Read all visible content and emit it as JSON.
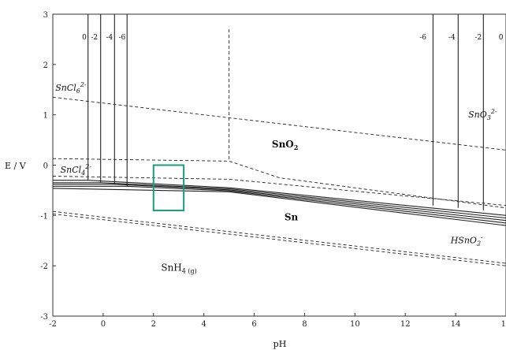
{
  "chart_data": {
    "type": "line",
    "title": "",
    "xlabel": "pH",
    "ylabel": "E / V",
    "xlim": [
      -2,
      16
    ],
    "ylim": [
      -3,
      3
    ],
    "x_ticks": [
      "-2",
      "0",
      "2",
      "4",
      "6",
      "8",
      "10",
      "12",
      "14",
      "16"
    ],
    "y_ticks": [
      "3",
      "2",
      "1",
      "0",
      "-1",
      "-2",
      "-3"
    ],
    "grid": false,
    "regions": [
      {
        "label": "SnO",
        "sub": "2",
        "sup": "",
        "x": 6.7,
        "y": 0.35,
        "style": "bold"
      },
      {
        "label": "Sn",
        "sub": "",
        "sup": "",
        "x": 7.2,
        "y": -1.1,
        "style": "bold"
      },
      {
        "label": "SnH",
        "sub": "4 (g)",
        "sup": "",
        "x": 2.3,
        "y": -2.1,
        "style": "normal"
      },
      {
        "label": "SnCl",
        "sub": "6",
        "sup": "2-",
        "x": -1.9,
        "y": 1.48,
        "style": "italic"
      },
      {
        "label": "SnCl",
        "sub": "4",
        "sup": "2-",
        "x": -1.7,
        "y": -0.15,
        "style": "italic"
      },
      {
        "label": "SnO",
        "sub": "3",
        "sup": "2-",
        "x": 14.5,
        "y": 0.95,
        "style": "italic"
      },
      {
        "label": "HSnO",
        "sub": "2",
        "sup": "-",
        "x": 13.8,
        "y": -1.55,
        "style": "italic"
      }
    ],
    "activity_labels_left": [
      {
        "text": "0",
        "x": -0.75
      },
      {
        "text": "-2",
        "x": -0.35
      },
      {
        "text": "-4",
        "x": 0.25
      },
      {
        "text": "-6",
        "x": 0.75
      }
    ],
    "activity_labels_right": [
      {
        "text": "-6",
        "x": 12.7
      },
      {
        "text": "-4",
        "x": 13.85
      },
      {
        "text": "-2",
        "x": 14.9
      },
      {
        "text": "0",
        "x": 15.8
      }
    ],
    "series": [
      {
        "style": "solid",
        "points": [
          [
            -0.6,
            3
          ],
          [
            -0.6,
            -0.3
          ]
        ]
      },
      {
        "style": "solid",
        "points": [
          [
            -0.1,
            3
          ],
          [
            -0.1,
            -0.35
          ]
        ]
      },
      {
        "style": "solid",
        "points": [
          [
            0.45,
            3
          ],
          [
            0.45,
            -0.38
          ]
        ]
      },
      {
        "style": "solid",
        "points": [
          [
            0.95,
            3
          ],
          [
            0.95,
            -0.42
          ]
        ]
      },
      {
        "style": "solid",
        "points": [
          [
            13.1,
            3
          ],
          [
            13.1,
            -0.8
          ]
        ]
      },
      {
        "style": "solid",
        "points": [
          [
            14.1,
            3
          ],
          [
            14.1,
            -0.85
          ]
        ]
      },
      {
        "style": "solid",
        "points": [
          [
            15.1,
            3
          ],
          [
            15.1,
            -0.9
          ]
        ]
      },
      {
        "style": "solid",
        "points": [
          [
            -2,
            -0.3
          ],
          [
            -0.6,
            -0.3
          ],
          [
            5,
            -0.45
          ],
          [
            16,
            -1.0
          ]
        ]
      },
      {
        "style": "solid",
        "points": [
          [
            -2,
            -0.35
          ],
          [
            -0.1,
            -0.35
          ],
          [
            5,
            -0.47
          ],
          [
            16,
            -1.05
          ]
        ]
      },
      {
        "style": "solid",
        "points": [
          [
            -2,
            -0.38
          ],
          [
            0.45,
            -0.38
          ],
          [
            5,
            -0.49
          ],
          [
            16,
            -1.1
          ]
        ]
      },
      {
        "style": "solid",
        "points": [
          [
            -2,
            -0.42
          ],
          [
            0.95,
            -0.42
          ],
          [
            5,
            -0.51
          ],
          [
            16,
            -1.15
          ]
        ]
      },
      {
        "style": "solid",
        "points": [
          [
            -2,
            -0.46
          ],
          [
            5,
            -0.53
          ],
          [
            16,
            -1.2
          ]
        ]
      },
      {
        "style": "dashed",
        "points": [
          [
            -2,
            1.35
          ],
          [
            16,
            0.3
          ]
        ]
      },
      {
        "style": "dashed",
        "points": [
          [
            -2,
            0.13
          ],
          [
            5,
            0.08
          ],
          [
            7,
            -0.25
          ],
          [
            16,
            -0.85
          ]
        ]
      },
      {
        "style": "dashed",
        "points": [
          [
            -2,
            -0.22
          ],
          [
            5,
            -0.28
          ],
          [
            16,
            -0.8
          ]
        ]
      },
      {
        "style": "dashed",
        "points": [
          [
            5,
            2.7
          ],
          [
            5,
            0.08
          ]
        ]
      },
      {
        "style": "dashed",
        "points": [
          [
            -2,
            -0.97
          ],
          [
            16,
            -2.0
          ]
        ]
      },
      {
        "style": "dashed",
        "points": [
          [
            -2,
            -0.92
          ],
          [
            16,
            -1.95
          ]
        ]
      }
    ],
    "highlight_box": {
      "x0": 2.0,
      "x1": 3.2,
      "y0": -0.9,
      "y1": 0.0,
      "color": "#1a9e7a"
    },
    "colors": {
      "line": "#222222",
      "box": "#1a9e7a"
    }
  }
}
